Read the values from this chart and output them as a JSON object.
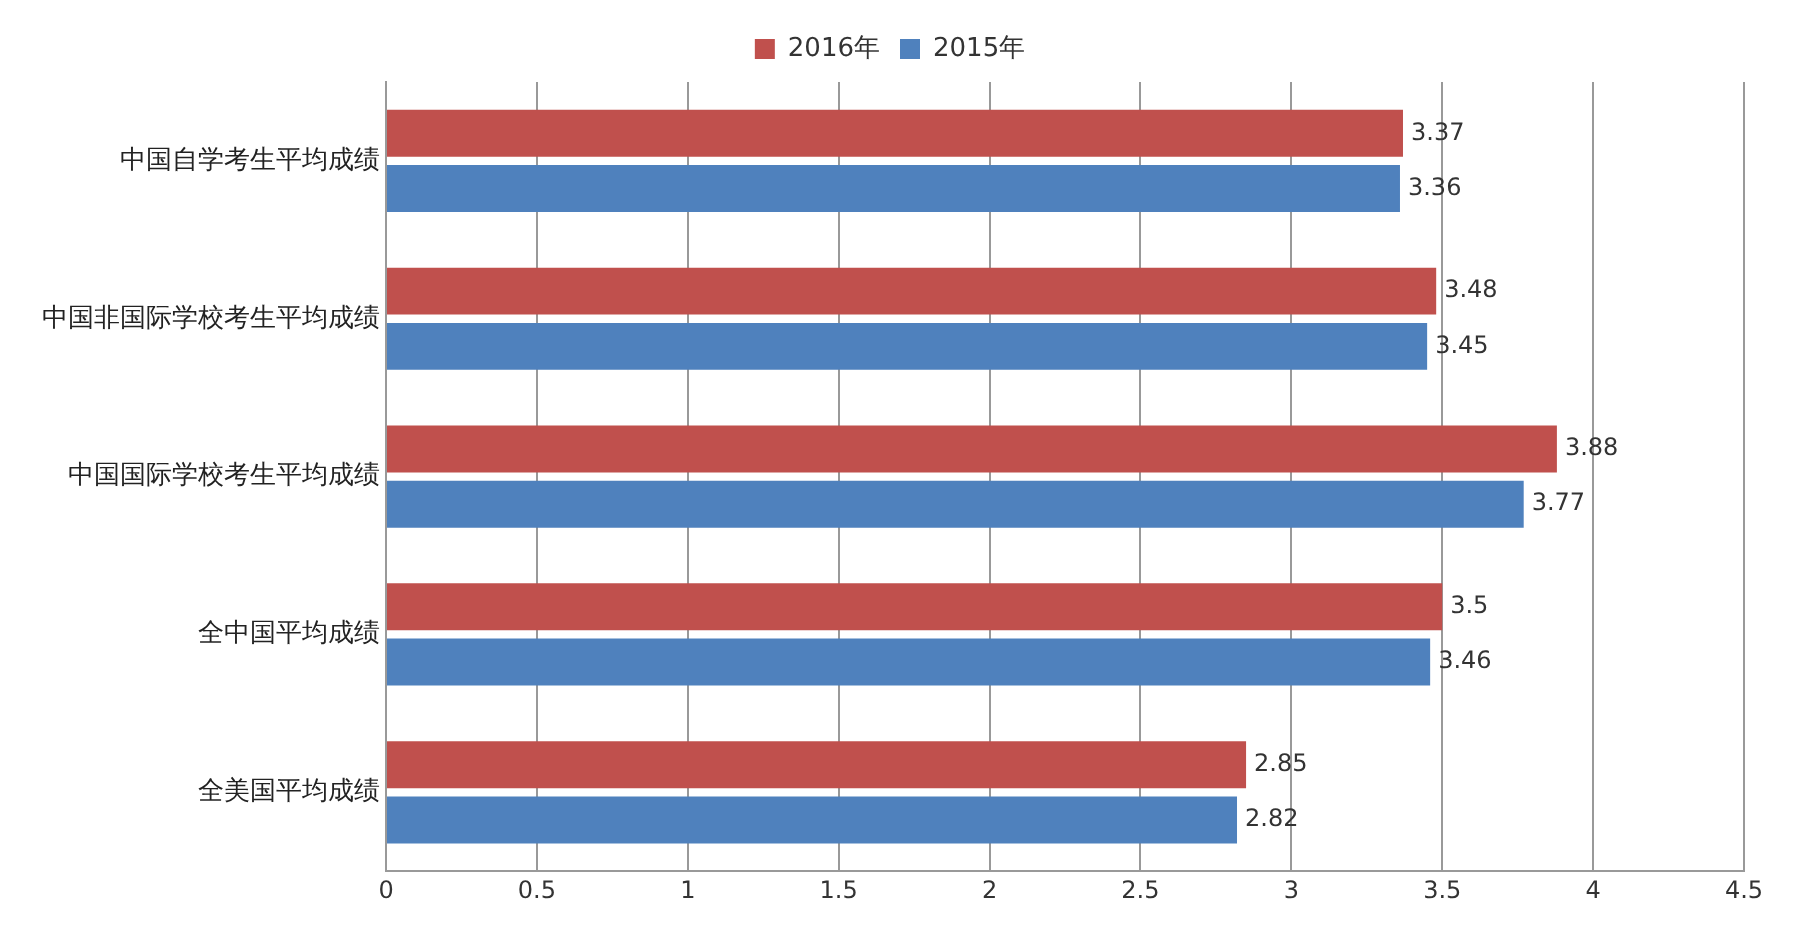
{
  "chart_data": {
    "type": "bar",
    "orientation": "horizontal",
    "categories": [
      "中国自学考生平均成绩",
      "中国非国际学校考生平均成绩",
      "中国国际学校考生平均成绩",
      "全中国平均成绩",
      "全美国平均成绩"
    ],
    "series": [
      {
        "name": "2016年",
        "color": "#c0504d",
        "values": [
          3.37,
          3.48,
          3.88,
          3.5,
          2.85
        ]
      },
      {
        "name": "2015年",
        "color": "#4f81bd",
        "values": [
          3.36,
          3.45,
          3.77,
          3.46,
          2.82
        ]
      }
    ],
    "xlim": [
      0,
      4.5
    ],
    "xticks": [
      0,
      0.5,
      1,
      1.5,
      2,
      2.5,
      3,
      3.5,
      4,
      4.5
    ],
    "grid": "x",
    "legend": "top",
    "data_labels": true
  }
}
